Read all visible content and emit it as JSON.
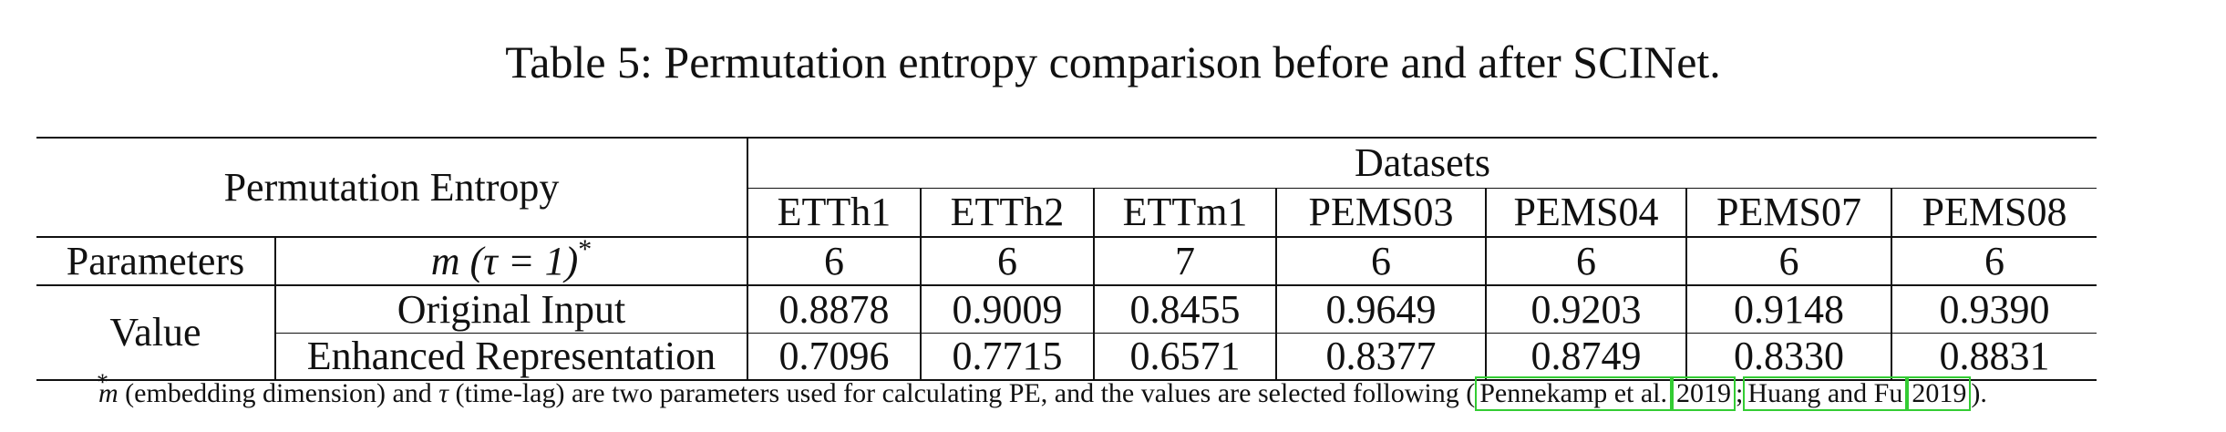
{
  "caption": "Table 5: Permutation entropy comparison before and after SCINet.",
  "table": {
    "corner_header": "Permutation Entropy",
    "datasets_header": "Datasets",
    "datasets": [
      "ETTh1",
      "ETTh2",
      "ETTm1",
      "PEMS03",
      "PEMS04",
      "PEMS07",
      "PEMS08"
    ],
    "parameters_label": "Parameters",
    "parameter_name": "m (τ = 1)",
    "parameter_marker": "*",
    "parameter_values": [
      "6",
      "6",
      "7",
      "6",
      "6",
      "6",
      "6"
    ],
    "value_label": "Value",
    "rows": [
      {
        "label": "Original Input",
        "values": [
          "0.8878",
          "0.9009",
          "0.8455",
          "0.9649",
          "0.9203",
          "0.9148",
          "0.9390"
        ]
      },
      {
        "label": "Enhanced Representation",
        "values": [
          "0.7096",
          "0.7715",
          "0.6571",
          "0.8377",
          "0.8749",
          "0.8330",
          "0.8831"
        ]
      }
    ]
  },
  "footnote": {
    "marker": "*",
    "text_m": "m",
    "text_1": " (embedding dimension) and ",
    "text_tau": "τ",
    "text_2": " (time-lag) are two parameters used for calculating PE, and the values are selected following ",
    "open_paren": "(",
    "cite1_authors": "Pennekamp et al.",
    "cite1_year": "2019",
    "separator": ";",
    "cite2_authors": "Huang and Fu",
    "cite2_year": "2019",
    "close_paren": ")."
  },
  "colors": {
    "citation_box": "#33cc33",
    "rule": "#111111"
  }
}
